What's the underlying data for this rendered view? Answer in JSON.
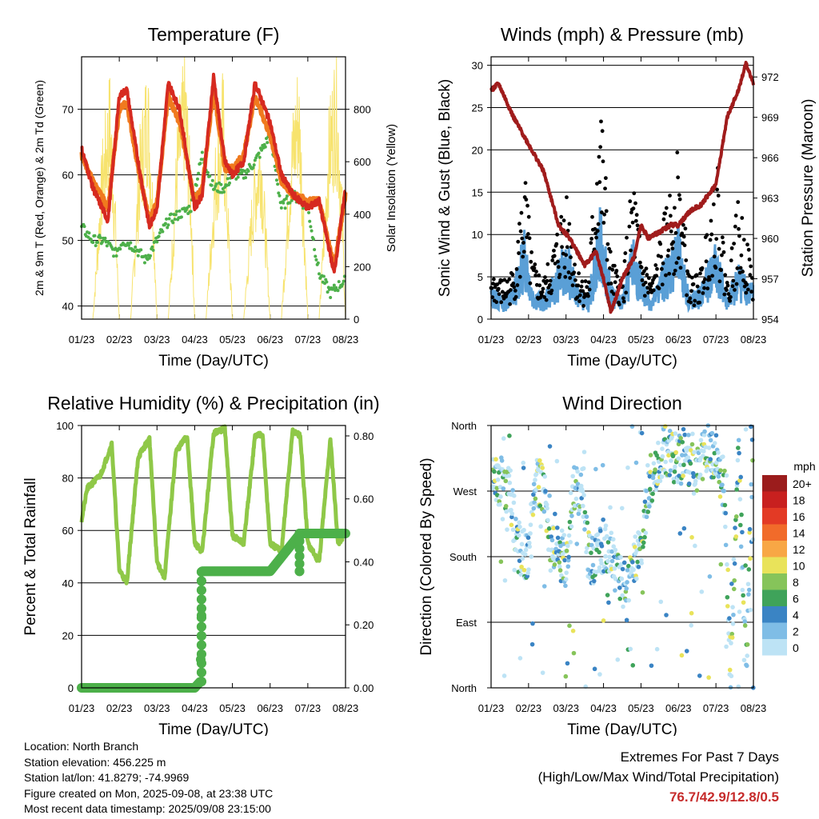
{
  "footer": {
    "location": "Location: North Branch",
    "elevation": "Station elevation: 456.225 m",
    "latlon": "Station lat/lon: 41.8279; -74.9969",
    "created": "Figure created on Mon, 2025-09-08, at 23:38 UTC",
    "recent": "Most recent data timestamp: 2025/09/08 23:15:00",
    "extremes_title": "Extremes For Past 7 Days",
    "extremes_sub": "(High/Low/Max Wind/Total Precipitation)",
    "extremes_values": "76.7/42.9/12.8/0.5"
  },
  "colors": {
    "temp2m": "#d62a20",
    "temp9m": "#f07a1e",
    "dewpoint": "#4db04a",
    "solar": "#f7e36e",
    "wind": "#5a9fd6",
    "gust": "#000000",
    "pressure": "#a01c1c",
    "rh": "#8fc848",
    "precip": "#4db04a"
  },
  "chart_data": [
    {
      "type": "line",
      "title": "Temperature (F)",
      "xlabel": "Time (Day/UTC)",
      "ylabel": "2m & 9m T (Red, Orange) & 2m Td (Green)",
      "y2label": "Solar Insolation (Yellow)",
      "x_ticks": [
        "01/23",
        "02/23",
        "03/23",
        "04/23",
        "05/23",
        "06/23",
        "07/23",
        "08/23"
      ],
      "ylim": [
        38,
        78
      ],
      "y_ticks": [
        40,
        50,
        60,
        70
      ],
      "y2lim": [
        0,
        1000
      ],
      "y2_ticks": [
        0,
        200,
        400,
        600,
        800
      ],
      "grid": true,
      "series": [
        {
          "name": "2m T",
          "axis": "y",
          "x": [
            0.0,
            0.3,
            0.7,
            1.0,
            1.2,
            1.5,
            1.8,
            2.0,
            2.3,
            2.6,
            3.0,
            3.2,
            3.5,
            3.8,
            4.0,
            4.3,
            4.6,
            5.0,
            5.3,
            5.6,
            6.0,
            6.3,
            6.7,
            7.0
          ],
          "values": [
            64,
            58,
            53,
            72,
            73,
            62,
            52,
            55,
            74,
            70,
            55,
            57,
            75,
            62,
            60,
            62,
            74,
            68,
            60,
            57,
            55,
            56,
            45,
            58
          ]
        },
        {
          "name": "9m T",
          "axis": "y",
          "x": [
            0.0,
            0.3,
            0.7,
            1.0,
            1.2,
            1.5,
            1.8,
            2.0,
            2.3,
            2.6,
            3.0,
            3.2,
            3.5,
            3.8,
            4.0,
            4.3,
            4.6,
            5.0,
            5.3,
            5.6,
            6.0,
            6.3,
            6.7,
            7.0
          ],
          "values": [
            63,
            59,
            55,
            70,
            71,
            61,
            53,
            56,
            72,
            68,
            56,
            58,
            73,
            61,
            61,
            63,
            72,
            66,
            59,
            57,
            56,
            56,
            46,
            57
          ]
        },
        {
          "name": "2m Td",
          "axis": "y",
          "x": [
            0.0,
            0.3,
            0.6,
            0.9,
            1.1,
            1.4,
            1.7,
            2.0,
            2.3,
            2.6,
            2.9,
            3.2,
            3.5,
            3.8,
            4.0,
            4.3,
            4.6,
            5.0,
            5.3,
            5.6,
            6.0,
            6.3,
            6.6,
            7.0
          ],
          "values": [
            52,
            50,
            50,
            48,
            50,
            49,
            47,
            50,
            53,
            54,
            55,
            63,
            58,
            58,
            60,
            60,
            62,
            66,
            55,
            57,
            55,
            45,
            42,
            44
          ]
        },
        {
          "name": "Solar",
          "axis": "y2",
          "x": [
            0.0,
            0.3,
            0.55,
            0.75,
            0.9,
            1.0,
            1.3,
            1.55,
            1.75,
            1.9,
            2.0,
            2.3,
            2.55,
            2.75,
            2.9,
            3.0,
            3.3,
            3.55,
            3.75,
            3.9,
            4.0,
            4.3,
            4.55,
            4.75,
            4.9,
            5.0,
            5.3,
            5.55,
            5.75,
            5.9,
            6.0,
            6.3,
            6.55,
            6.75,
            6.9,
            7.0
          ],
          "values": [
            0,
            0,
            600,
            850,
            400,
            0,
            0,
            650,
            900,
            450,
            0,
            0,
            700,
            920,
            500,
            0,
            0,
            600,
            850,
            350,
            0,
            0,
            500,
            700,
            300,
            0,
            0,
            650,
            900,
            400,
            0,
            0,
            700,
            950,
            500,
            0
          ]
        }
      ]
    },
    {
      "type": "line",
      "title": "Winds (mph) & Pressure (mb)",
      "xlabel": "Time (Day/UTC)",
      "ylabel": "Sonic Wind & Gust (Blue, Black)",
      "y2label": "Station Pressure (Maroon)",
      "x_ticks": [
        "01/23",
        "02/23",
        "03/23",
        "04/23",
        "05/23",
        "06/23",
        "07/23",
        "08/23"
      ],
      "ylim": [
        0,
        31
      ],
      "y_ticks": [
        0,
        5,
        10,
        15,
        20,
        25,
        30
      ],
      "y2lim": [
        954,
        973.5
      ],
      "y2_ticks": [
        954,
        957,
        960,
        963,
        966,
        969,
        972
      ],
      "grid": true,
      "series": [
        {
          "name": "Sonic Wind",
          "axis": "y",
          "x": [
            0.0,
            0.3,
            0.6,
            0.9,
            1.1,
            1.4,
            1.7,
            2.0,
            2.3,
            2.6,
            2.9,
            3.2,
            3.5,
            3.8,
            4.0,
            4.3,
            4.6,
            5.0,
            5.3,
            5.6,
            6.0,
            6.3,
            6.6,
            7.0
          ],
          "values": [
            3,
            2,
            3,
            8,
            3,
            2,
            4,
            7,
            3,
            2,
            10,
            3,
            2,
            7,
            4,
            2,
            5,
            8,
            2,
            3,
            7,
            2,
            5,
            3
          ]
        },
        {
          "name": "Gust",
          "axis": "y",
          "x": [
            0.0,
            0.3,
            0.6,
            0.9,
            1.1,
            1.4,
            1.7,
            2.0,
            2.3,
            2.6,
            2.9,
            3.2,
            3.5,
            3.8,
            4.0,
            4.3,
            4.6,
            5.0,
            5.3,
            5.6,
            6.0,
            6.3,
            6.6,
            7.0
          ],
          "values": [
            5,
            4,
            5,
            15,
            6,
            4,
            8,
            14,
            5,
            4,
            24,
            6,
            4,
            15,
            7,
            4,
            10,
            17,
            4,
            5,
            17,
            4,
            12,
            5
          ]
        },
        {
          "name": "Pressure",
          "axis": "y2",
          "x": [
            0.0,
            0.2,
            0.6,
            1.0,
            1.4,
            1.8,
            2.1,
            2.5,
            2.8,
            3.0,
            3.2,
            3.5,
            3.8,
            4.0,
            4.2,
            4.5,
            4.8,
            5.0,
            5.3,
            5.6,
            6.0,
            6.3,
            6.6,
            6.8,
            7.0
          ],
          "values": [
            971,
            971.5,
            969,
            967,
            965,
            961,
            960,
            958,
            959,
            957,
            954.5,
            957,
            958.5,
            961,
            960,
            960.5,
            961,
            961,
            962,
            962.5,
            964,
            969,
            971,
            973,
            971.5
          ]
        }
      ]
    },
    {
      "type": "line",
      "title": "Relative Humidity (%) & Precipitation (in)",
      "xlabel": "Time (Day/UTC)",
      "ylabel": "Percent & Total Rainfall",
      "x_ticks": [
        "01/23",
        "02/23",
        "03/23",
        "04/23",
        "05/23",
        "06/23",
        "07/23",
        "08/23"
      ],
      "ylim": [
        0,
        100
      ],
      "y_ticks": [
        0,
        20,
        40,
        60,
        80,
        100
      ],
      "y2lim": [
        0,
        0.833
      ],
      "y2_ticks": [
        0.0,
        0.2,
        0.4,
        0.6,
        0.8
      ],
      "grid": true,
      "series": [
        {
          "name": "RH",
          "axis": "y",
          "x": [
            0.0,
            0.15,
            0.5,
            0.8,
            1.0,
            1.2,
            1.5,
            1.8,
            2.0,
            2.2,
            2.5,
            2.8,
            3.0,
            3.2,
            3.5,
            3.8,
            4.0,
            4.3,
            4.6,
            4.8,
            5.0,
            5.3,
            5.6,
            5.8,
            6.0,
            6.3,
            6.6,
            6.8,
            7.0
          ],
          "values": [
            64,
            76,
            81,
            93,
            45,
            40,
            88,
            95,
            48,
            42,
            90,
            96,
            55,
            52,
            97,
            99,
            58,
            55,
            96,
            97,
            55,
            52,
            98,
            96,
            55,
            48,
            95,
            55,
            59
          ]
        },
        {
          "name": "Precipitation",
          "axis": "y2",
          "x": [
            0.0,
            3.0,
            3.15,
            3.2,
            3.35,
            4.5,
            5.0,
            5.8,
            7.0
          ],
          "values": [
            0.0,
            0.0,
            0.02,
            0.37,
            0.37,
            0.37,
            0.37,
            0.49,
            0.49
          ]
        }
      ]
    },
    {
      "type": "scatter",
      "title": "Wind Direction",
      "xlabel": "Time (Day/UTC)",
      "ylabel": "Direction (Colored By Speed)",
      "x_ticks": [
        "01/23",
        "02/23",
        "03/23",
        "04/23",
        "05/23",
        "06/23",
        "07/23",
        "08/23"
      ],
      "y_ticks": [
        "North",
        "East",
        "South",
        "West",
        "North"
      ],
      "ylim": [
        0,
        360
      ],
      "grid": true,
      "legend": {
        "title": "mph",
        "placement": "right",
        "labels": [
          "20+",
          "18",
          "16",
          "14",
          "12",
          "10",
          "8",
          "6",
          "4",
          "2",
          "0"
        ],
        "colors": [
          "#9b1c1c",
          "#c8201f",
          "#e33a25",
          "#f16b2a",
          "#f8a745",
          "#e9e35a",
          "#86c45a",
          "#3fa35a",
          "#3a84c4",
          "#7fbde6",
          "#bde3f5"
        ]
      },
      "series": [
        {
          "name": "Direction",
          "x": [
            0.1,
            0.3,
            0.5,
            0.7,
            0.9,
            1.0,
            1.2,
            1.4,
            1.6,
            1.8,
            2.0,
            2.2,
            2.4,
            2.6,
            2.8,
            3.0,
            3.2,
            3.4,
            3.6,
            3.8,
            4.0,
            4.2,
            4.4,
            4.6,
            4.8,
            5.0,
            5.2,
            5.4,
            5.6,
            5.8,
            6.0,
            6.2,
            6.4,
            6.6,
            6.8,
            7.0
          ],
          "values": [
            280,
            285,
            270,
            200,
            180,
            175,
            280,
            275,
            190,
            200,
            170,
            280,
            270,
            180,
            175,
            190,
            185,
            150,
            140,
            180,
            185,
            280,
            300,
            330,
            320,
            310,
            325,
            295,
            310,
            330,
            315,
            300,
            25,
            340,
            20,
            350
          ]
        }
      ]
    }
  ]
}
